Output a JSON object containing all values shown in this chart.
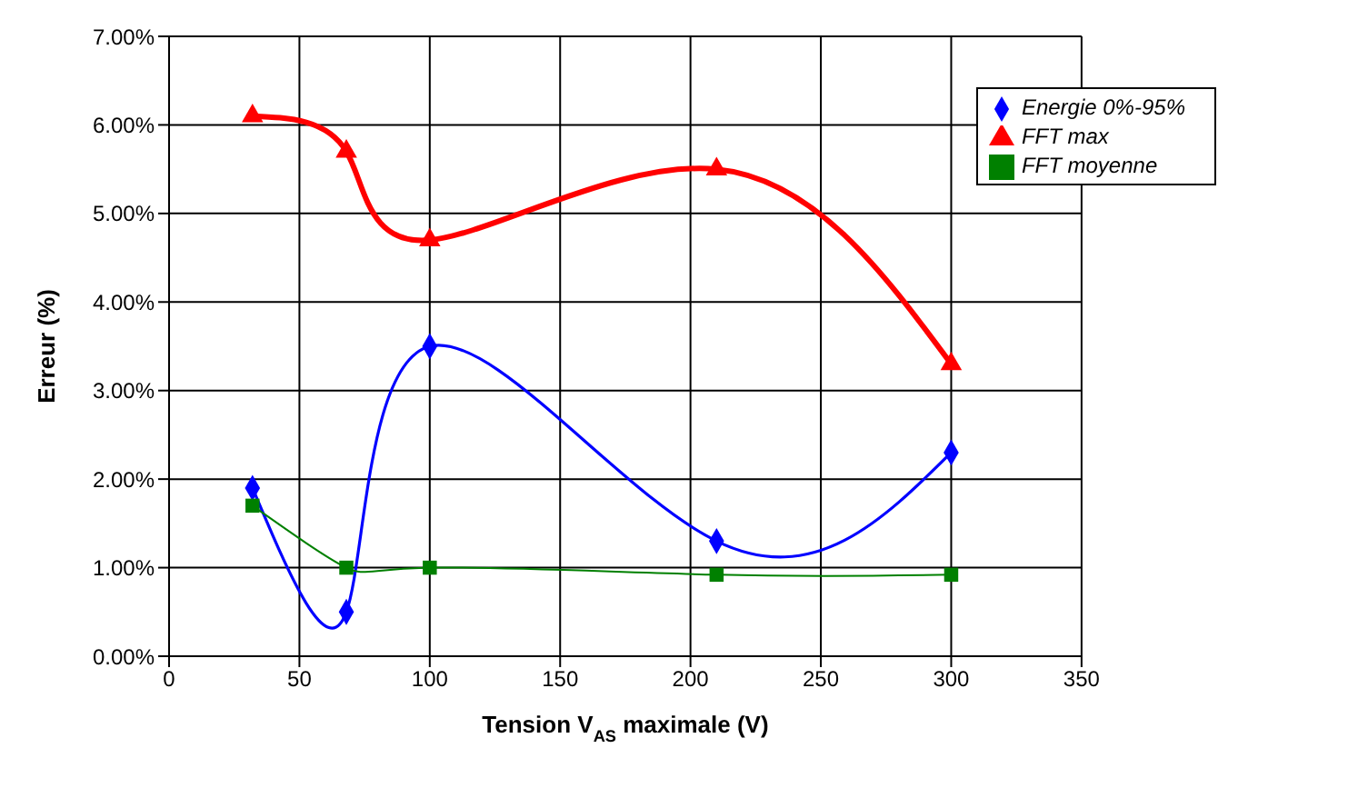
{
  "chart_data": {
    "type": "line",
    "xlabel": "Tension V$_{AS}$ maximale (V)",
    "ylabel": "Erreur (%)",
    "x": [
      32,
      68,
      100,
      210,
      300
    ],
    "series": [
      {
        "name": "FFT max",
        "color": "#ff0000",
        "marker": "triangle",
        "values": [
          6.1,
          5.7,
          4.7,
          5.5,
          3.3
        ]
      },
      {
        "name": "Energie 0%-95%",
        "color": "#0000ff",
        "marker": "diamond",
        "values": [
          1.9,
          0.5,
          3.5,
          1.3,
          2.3
        ]
      },
      {
        "name": "FFT moyenne",
        "color": "#008000",
        "marker": "square",
        "values": [
          1.7,
          1.0,
          1.0,
          0.92,
          0.92
        ]
      }
    ],
    "xlim": [
      0,
      350
    ],
    "xticks": [
      0,
      50,
      100,
      150,
      200,
      250,
      300,
      350
    ],
    "ylim": [
      0,
      7
    ],
    "yticks": [
      {
        "value": 0,
        "label": "0.00%"
      },
      {
        "value": 1,
        "label": "1.00%"
      },
      {
        "value": 2,
        "label": "2.00%"
      },
      {
        "value": 3,
        "label": "3.00%"
      },
      {
        "value": 4,
        "label": "4.00%"
      },
      {
        "value": 5,
        "label": "5.00%"
      },
      {
        "value": 6,
        "label": "6.00%"
      },
      {
        "value": 7,
        "label": "7.00%"
      }
    ],
    "grid": true,
    "legend": "top right",
    "line_style": "solid"
  }
}
